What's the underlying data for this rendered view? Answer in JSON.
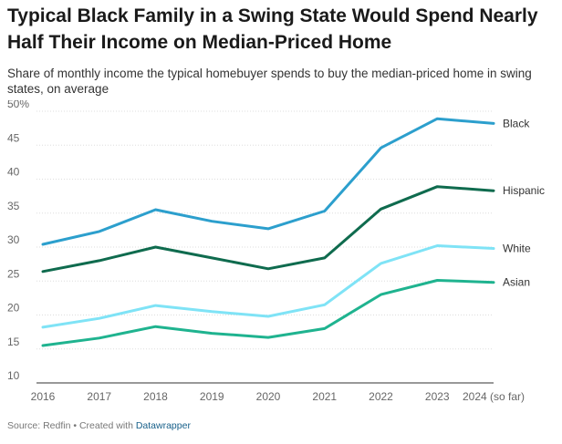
{
  "header": {
    "title": "Typical Black Family in a Swing State Would Spend Nearly Half Their Income on Median-Priced Home",
    "subtitle": "Share of monthly income the typical homebuyer spends to buy the median-priced home in swing states, on average"
  },
  "footer": {
    "source_text": "Source: Redfin • Created with ",
    "link_text": "Datawrapper"
  },
  "colors": {
    "Black": "#2c9fcd",
    "Hispanic": "#0f6b4e",
    "White": "#7fe3f6",
    "Asian": "#1fb38f",
    "grid": "#dddddd",
    "axis_text": "#666666",
    "label_text": "#333333"
  },
  "chart_data": {
    "type": "line",
    "title": "Typical Black Family in a Swing State Would Spend Nearly Half Their Income on Median-Priced Home",
    "subtitle": "Share of monthly income the typical homebuyer spends to buy the median-priced home in swing states, on average",
    "categories": [
      "2016",
      "2017",
      "2018",
      "2019",
      "2020",
      "2021",
      "2022",
      "2023",
      "2024 (so far)"
    ],
    "ylim": [
      10,
      50
    ],
    "yticks": [
      10,
      15,
      20,
      25,
      30,
      35,
      40,
      45,
      50
    ],
    "ytick_labels": [
      "10",
      "15",
      "20",
      "25",
      "30",
      "35",
      "40",
      "45",
      "50%"
    ],
    "grid": true,
    "legend": "direct-labels-right",
    "series": [
      {
        "name": "Black",
        "values": [
          30.4,
          32.3,
          35.5,
          33.8,
          32.7,
          35.3,
          44.6,
          48.9,
          48.2
        ]
      },
      {
        "name": "Hispanic",
        "values": [
          26.4,
          28.0,
          30.0,
          28.4,
          26.8,
          28.4,
          35.6,
          38.9,
          38.3
        ]
      },
      {
        "name": "White",
        "values": [
          18.2,
          19.5,
          21.4,
          20.5,
          19.8,
          21.5,
          27.6,
          30.2,
          29.8
        ]
      },
      {
        "name": "Asian",
        "values": [
          15.5,
          16.6,
          18.3,
          17.3,
          16.7,
          18.0,
          23.0,
          25.1,
          24.8
        ]
      }
    ]
  }
}
